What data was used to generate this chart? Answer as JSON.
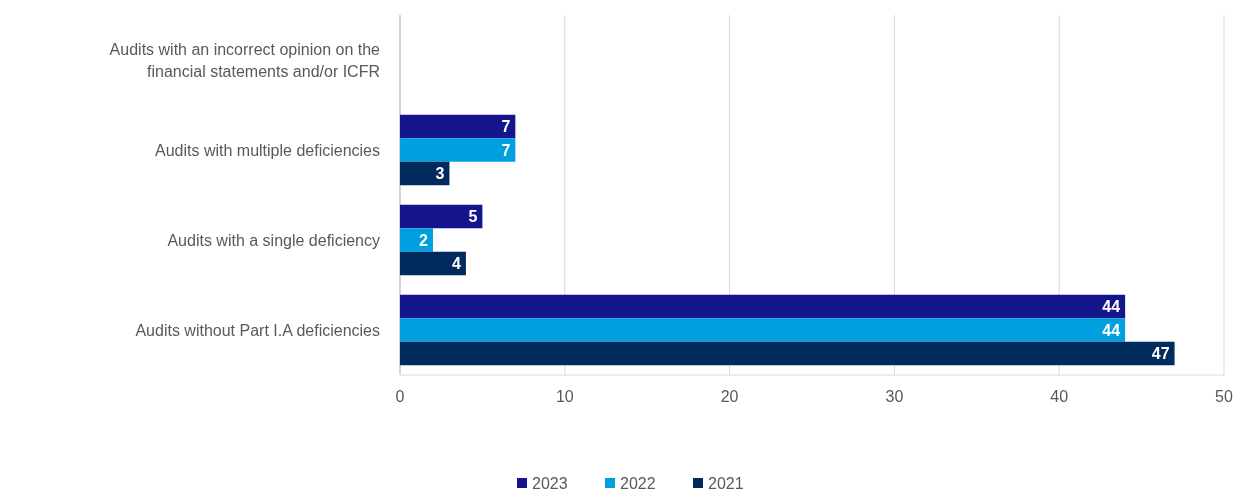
{
  "chart_data": {
    "type": "bar",
    "orientation": "horizontal",
    "categories": [
      "Audits with an incorrect opinion on the financial statements and/or ICFR",
      "Audits with multiple deficiencies",
      "Audits with a single deficiency",
      "Audits without Part I.A deficiencies"
    ],
    "series": [
      {
        "name": "2023",
        "color": "#14148c",
        "values": [
          null,
          7,
          5,
          44
        ]
      },
      {
        "name": "2022",
        "color": "#009fdf",
        "values": [
          null,
          7,
          2,
          44
        ]
      },
      {
        "name": "2021",
        "color": "#002b5c",
        "values": [
          null,
          3,
          4,
          47
        ]
      }
    ],
    "xlim": [
      0,
      50
    ],
    "xticks": [
      0,
      10,
      20,
      30,
      40,
      50
    ],
    "grid": "x",
    "legend": "bottom",
    "data_labels": true
  }
}
